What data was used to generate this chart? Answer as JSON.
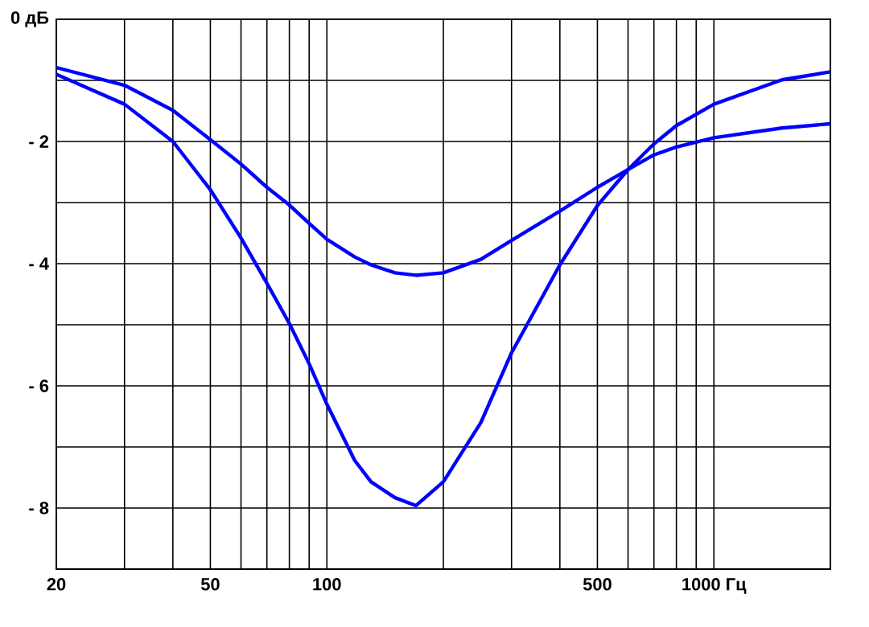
{
  "chart_data": {
    "type": "line",
    "log": "x",
    "grid": true,
    "line_style": "solid",
    "x": [
      20,
      30,
      40,
      50,
      60,
      70,
      80,
      90,
      100,
      118,
      130,
      150,
      170,
      200,
      250,
      300,
      400,
      500,
      600,
      700,
      800,
      1000,
      1500,
      2000
    ],
    "series": [
      {
        "color": "#0000ff",
        "values": [
          -0.79,
          -1.08,
          -1.49,
          -1.97,
          -2.37,
          -2.75,
          -3.04,
          -3.34,
          -3.6,
          -3.89,
          -4.02,
          -4.15,
          -4.19,
          -4.15,
          -3.93,
          -3.62,
          -3.14,
          -2.75,
          -2.46,
          -2.22,
          -2.09,
          -1.94,
          -1.78,
          -1.71
        ]
      },
      {
        "color": "#0000ff",
        "values": [
          -0.9,
          -1.39,
          -2.0,
          -2.79,
          -3.58,
          -4.32,
          -4.98,
          -5.64,
          -6.3,
          -7.22,
          -7.57,
          -7.83,
          -7.96,
          -7.57,
          -6.6,
          -5.46,
          -4.02,
          -3.05,
          -2.46,
          -2.04,
          -1.74,
          -1.39,
          -0.99,
          -0.86
        ]
      }
    ],
    "xlim": [
      20,
      2000
    ],
    "ylim": [
      -9,
      0
    ],
    "xticks": [
      20,
      {
        "value": 30,
        "label": null
      },
      {
        "value": 40,
        "label": null
      },
      50,
      {
        "value": 60,
        "label": null
      },
      {
        "value": 70,
        "label": null
      },
      {
        "value": 80,
        "label": null
      },
      {
        "value": 90,
        "label": null
      },
      100,
      {
        "value": 200,
        "label": null
      },
      {
        "value": 300,
        "label": null
      },
      {
        "value": 400,
        "label": null
      },
      500,
      {
        "value": 600,
        "label": null
      },
      {
        "value": 700,
        "label": null
      },
      {
        "value": 800,
        "label": null
      },
      {
        "value": 900,
        "label": null
      },
      {
        "value": 1000,
        "label": "1000 Гц"
      }
    ],
    "yticks": [
      {
        "value": 0,
        "label": "0 дБ"
      },
      {
        "value": -1,
        "label": null
      },
      {
        "value": -2,
        "label": "- 2"
      },
      {
        "value": -3,
        "label": null
      },
      {
        "value": -4,
        "label": "- 4"
      },
      {
        "value": -5,
        "label": null
      },
      {
        "value": -6,
        "label": "- 6"
      },
      {
        "value": -7,
        "label": null
      },
      {
        "value": -8,
        "label": "- 8"
      }
    ]
  }
}
